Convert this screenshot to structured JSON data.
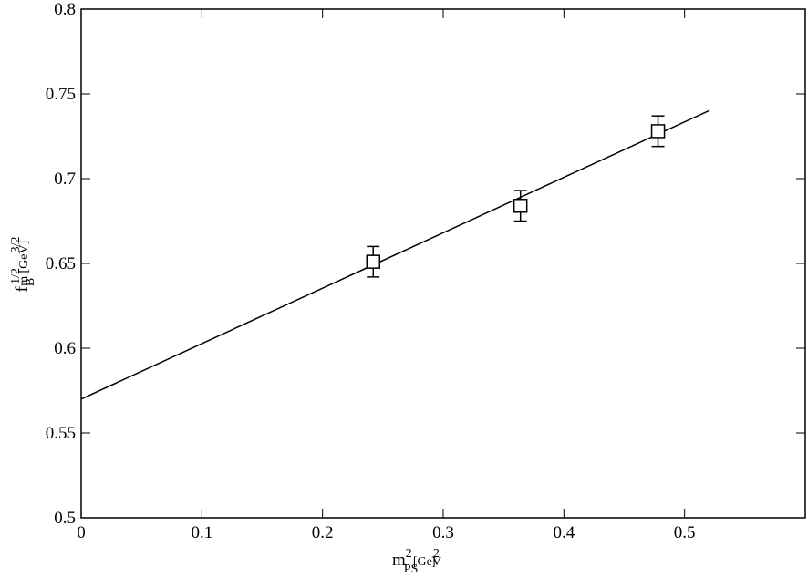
{
  "chart_data": {
    "type": "scatter",
    "x_label": [
      "m",
      "2",
      "PS",
      " [GeV",
      "2",
      "]"
    ],
    "y_label": [
      "f",
      "B",
      "m",
      "1/2",
      " [GeV",
      "3/2",
      "]"
    ],
    "xlim": [
      0,
      0.6
    ],
    "xticks": [
      0,
      0.1,
      0.2,
      0.3,
      0.4,
      0.5
    ],
    "ylim": [
      0.5,
      0.8
    ],
    "yticks": [
      0.5,
      0.55,
      0.6,
      0.65,
      0.7,
      0.75,
      0.8
    ],
    "points": {
      "x": [
        0.242,
        0.364,
        0.478
      ],
      "values": [
        0.651,
        0.684,
        0.728
      ],
      "errors": [
        0.009,
        0.009,
        0.009
      ],
      "color": "#000000"
    },
    "fit": {
      "x": [
        0,
        0.52
      ],
      "values": [
        0.57,
        0.74
      ],
      "color": "#000000"
    }
  }
}
